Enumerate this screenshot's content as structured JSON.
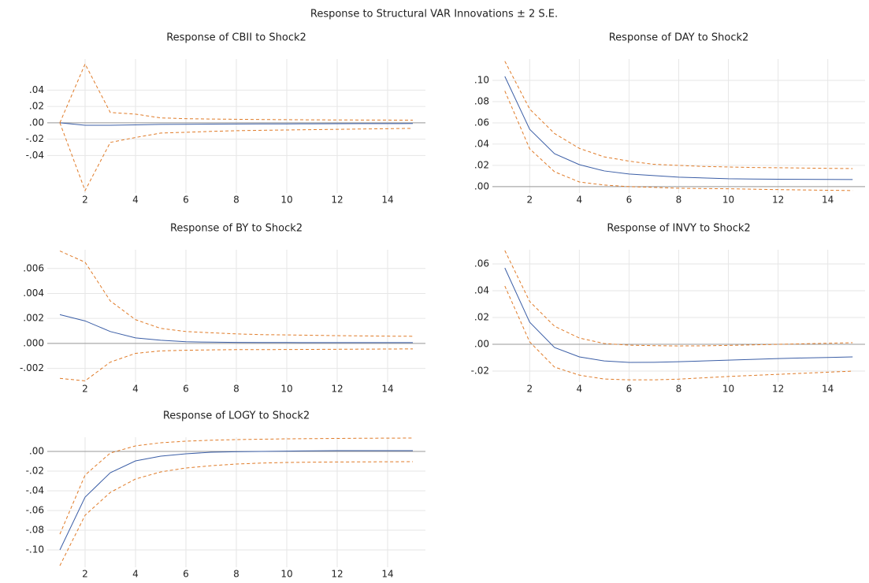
{
  "title": "Response to Structural VAR Innovations ± 2 S.E.",
  "chart_data": [
    {
      "type": "line",
      "title": "Response of CBII to Shock2",
      "x": [
        1,
        2,
        3,
        4,
        5,
        6,
        7,
        8,
        9,
        10,
        11,
        12,
        13,
        14,
        15
      ],
      "series": [
        {
          "color": "#3b5ea6",
          "dashed": false,
          "values": [
            0,
            -0.003,
            -0.003,
            -0.0025,
            -0.002,
            -0.0018,
            -0.0016,
            -0.0015,
            -0.0014,
            -0.0013,
            -0.0012,
            -0.0011,
            -0.001,
            -0.001,
            -0.0009
          ]
        },
        {
          "color": "#e07b28",
          "dashed": true,
          "values": [
            0,
            0.072,
            0.0126,
            0.0106,
            0.006,
            0.005,
            0.0046,
            0.0043,
            0.004,
            0.0038,
            0.0036,
            0.0035,
            0.0034,
            0.0033,
            0.0032
          ]
        },
        {
          "color": "#e07b28",
          "dashed": true,
          "values": [
            0,
            -0.083,
            -0.024,
            -0.018,
            -0.0126,
            -0.0116,
            -0.0105,
            -0.0097,
            -0.0092,
            -0.0088,
            -0.0084,
            -0.008,
            -0.0076,
            -0.0072,
            -0.0068
          ]
        }
      ],
      "xlim": [
        0.5,
        15.5
      ],
      "xticks": [
        2,
        4,
        6,
        8,
        10,
        12,
        14
      ],
      "ylim": [
        -0.086,
        0.078
      ],
      "yticks": [
        {
          "value": 0.04,
          "label": ".04"
        },
        {
          "value": 0.02,
          "label": ".02"
        },
        {
          "value": 0,
          "label": ".00"
        },
        {
          "value": -0.02,
          "label": "-.02"
        },
        {
          "value": -0.04,
          "label": "-.04"
        }
      ],
      "grid": true
    },
    {
      "type": "line",
      "title": "Response of DAY to Shock2",
      "x": [
        1,
        2,
        3,
        4,
        5,
        6,
        7,
        8,
        9,
        10,
        11,
        12,
        13,
        14,
        15
      ],
      "series": [
        {
          "color": "#3b5ea6",
          "dashed": false,
          "values": [
            0.1037,
            0.054,
            0.031,
            0.0207,
            0.0148,
            0.0119,
            0.0104,
            0.0089,
            0.0082,
            0.0074,
            0.0072,
            0.007,
            0.0069,
            0.0068,
            0.0067
          ]
        },
        {
          "color": "#e07b28",
          "dashed": true,
          "values": [
            0.118,
            0.073,
            0.05,
            0.036,
            0.028,
            0.024,
            0.021,
            0.02,
            0.019,
            0.0185,
            0.018,
            0.0178,
            0.0175,
            0.0172,
            0.017
          ]
        },
        {
          "color": "#e07b28",
          "dashed": true,
          "values": [
            0.09,
            0.0356,
            0.014,
            0.0044,
            0.0015,
            0,
            -0.0007,
            -0.0015,
            -0.0018,
            -0.002,
            -0.0024,
            -0.0028,
            -0.0031,
            -0.0034,
            -0.0037
          ]
        }
      ],
      "xlim": [
        0.5,
        15.5
      ],
      "xticks": [
        2,
        4,
        6,
        8,
        10,
        12,
        14
      ],
      "ylim": [
        -0.006,
        0.12
      ],
      "yticks": [
        {
          "value": 0.1,
          "label": ".10"
        },
        {
          "value": 0.08,
          "label": ".08"
        },
        {
          "value": 0.06,
          "label": ".06"
        },
        {
          "value": 0.04,
          "label": ".04"
        },
        {
          "value": 0.02,
          "label": ".02"
        },
        {
          "value": 0,
          "label": ".00"
        }
      ],
      "grid": true
    },
    {
      "type": "line",
      "title": "Response of BY to Shock2",
      "x": [
        1,
        2,
        3,
        4,
        5,
        6,
        7,
        8,
        9,
        10,
        11,
        12,
        13,
        14,
        15
      ],
      "series": [
        {
          "color": "#3b5ea6",
          "dashed": false,
          "values": [
            0.0023,
            0.0018,
            0.00095,
            0.00044,
            0.00025,
            0.00013,
            0.0001,
            8e-05,
            7e-05,
            7e-05,
            6e-05,
            6e-05,
            6e-05,
            6e-05,
            6e-05
          ]
        },
        {
          "color": "#e07b28",
          "dashed": true,
          "values": [
            0.0074,
            0.0065,
            0.0034,
            0.0019,
            0.0012,
            0.00095,
            0.00085,
            0.00076,
            0.0007,
            0.00068,
            0.00065,
            0.00062,
            0.0006,
            0.00058,
            0.00057
          ]
        },
        {
          "color": "#e07b28",
          "dashed": true,
          "values": [
            -0.0028,
            -0.003,
            -0.0015,
            -0.0008,
            -0.0006,
            -0.00055,
            -0.00052,
            -0.0005,
            -0.0005,
            -0.00049,
            -0.00048,
            -0.00047,
            -0.00046,
            -0.00045,
            -0.00044
          ]
        }
      ],
      "xlim": [
        0.5,
        15.5
      ],
      "xticks": [
        2,
        4,
        6,
        8,
        10,
        12,
        14
      ],
      "ylim": [
        -0.0031,
        0.0075
      ],
      "yticks": [
        {
          "value": 0.006,
          "label": ".006"
        },
        {
          "value": 0.004,
          "label": ".004"
        },
        {
          "value": 0.002,
          "label": ".002"
        },
        {
          "value": 0,
          "label": ".000"
        },
        {
          "value": -0.002,
          "label": "-.002"
        }
      ],
      "grid": true
    },
    {
      "type": "line",
      "title": "Response of INVY to Shock2",
      "x": [
        1,
        2,
        3,
        4,
        5,
        6,
        7,
        8,
        9,
        10,
        11,
        12,
        13,
        14,
        15
      ],
      "series": [
        {
          "color": "#3b5ea6",
          "dashed": false,
          "values": [
            0.057,
            0.0165,
            -0.0024,
            -0.0094,
            -0.0124,
            -0.0135,
            -0.0134,
            -0.013,
            -0.0124,
            -0.0118,
            -0.0112,
            -0.0106,
            -0.0102,
            -0.0098,
            -0.0094
          ]
        },
        {
          "color": "#e07b28",
          "dashed": true,
          "values": [
            0.07,
            0.032,
            0.0135,
            0.0047,
            0.0006,
            -0.0006,
            -0.001,
            -0.0012,
            -0.0011,
            -0.0008,
            -0.0004,
            0,
            0.0004,
            0.0008,
            0.0012
          ]
        },
        {
          "color": "#e07b28",
          "dashed": true,
          "values": [
            0.0435,
            0.0018,
            -0.017,
            -0.023,
            -0.0259,
            -0.0265,
            -0.0265,
            -0.026,
            -0.025,
            -0.024,
            -0.0232,
            -0.0224,
            -0.0216,
            -0.0208,
            -0.02
          ]
        }
      ],
      "xlim": [
        0.5,
        15.5
      ],
      "xticks": [
        2,
        4,
        6,
        8,
        10,
        12,
        14
      ],
      "ylim": [
        -0.0282,
        0.0706
      ],
      "yticks": [
        {
          "value": 0.06,
          "label": ".06"
        },
        {
          "value": 0.04,
          "label": ".04"
        },
        {
          "value": 0.02,
          "label": ".02"
        },
        {
          "value": 0,
          "label": ".00"
        },
        {
          "value": -0.02,
          "label": "-.02"
        }
      ],
      "grid": true
    },
    {
      "type": "line",
      "title": "Response of LOGY to Shock2",
      "x": [
        1,
        2,
        3,
        4,
        5,
        6,
        7,
        8,
        9,
        10,
        11,
        12,
        13,
        14,
        15
      ],
      "series": [
        {
          "color": "#3b5ea6",
          "dashed": false,
          "values": [
            -0.1,
            -0.0464,
            -0.0216,
            -0.0096,
            -0.0048,
            -0.0024,
            -0.0008,
            -0.0003,
            0,
            0.0003,
            0.0006,
            0.0008,
            0.0008,
            0.0008,
            0.0008
          ]
        },
        {
          "color": "#e07b28",
          "dashed": true,
          "values": [
            -0.084,
            -0.024,
            -0.0016,
            0.0056,
            0.0088,
            0.0104,
            0.0114,
            0.012,
            0.0124,
            0.0128,
            0.013,
            0.0132,
            0.0134,
            0.0135,
            0.0136
          ]
        },
        {
          "color": "#e07b28",
          "dashed": true,
          "values": [
            -0.116,
            -0.0648,
            -0.0416,
            -0.028,
            -0.0208,
            -0.0168,
            -0.0145,
            -0.0128,
            -0.0118,
            -0.0112,
            -0.0109,
            -0.0107,
            -0.0106,
            -0.0105,
            -0.0104
          ]
        }
      ],
      "xlim": [
        0.5,
        15.5
      ],
      "xticks": [
        2,
        4,
        6,
        8,
        10,
        12,
        14
      ],
      "ylim": [
        -0.1176,
        0.0144
      ],
      "yticks": [
        {
          "value": 0,
          "label": ".00"
        },
        {
          "value": -0.02,
          "label": "-.02"
        },
        {
          "value": -0.04,
          "label": "-.04"
        },
        {
          "value": -0.06,
          "label": "-.06"
        },
        {
          "value": -0.08,
          "label": "-.08"
        },
        {
          "value": -0.1,
          "label": "-.10"
        }
      ],
      "grid": true
    }
  ]
}
